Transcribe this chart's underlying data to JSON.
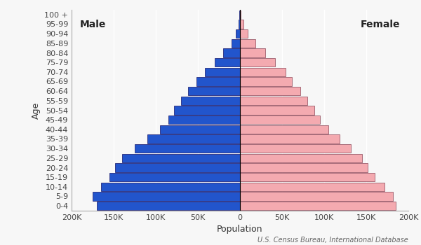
{
  "age_groups": [
    "0-4",
    "5-9",
    "10-14",
    "15-19",
    "20-24",
    "25-29",
    "30-34",
    "35-39",
    "40-44",
    "45-49",
    "50-54",
    "55-59",
    "60-64",
    "65-69",
    "70-74",
    "75-79",
    "80-84",
    "85-89",
    "90-94",
    "95-99",
    "100 +"
  ],
  "male": [
    170000,
    175000,
    165000,
    155000,
    148000,
    140000,
    125000,
    110000,
    95000,
    85000,
    78000,
    70000,
    62000,
    52000,
    42000,
    30000,
    20000,
    10000,
    5000,
    2000,
    500
  ],
  "female": [
    185000,
    182000,
    172000,
    160000,
    152000,
    145000,
    132000,
    118000,
    105000,
    95000,
    88000,
    80000,
    72000,
    62000,
    54000,
    42000,
    30000,
    18000,
    9000,
    4000,
    1000
  ],
  "male_color": "#2255cc",
  "female_color": "#f4aab0",
  "male_edge_color": "#111166",
  "female_edge_color": "#884455",
  "bar_height": 0.88,
  "xlim": 200000,
  "xticks": [
    -200000,
    -150000,
    -100000,
    -50000,
    0,
    50000,
    100000,
    150000,
    200000
  ],
  "xtick_labels": [
    "200K",
    "150K",
    "100K",
    "50K",
    "0",
    "50K",
    "100K",
    "150K",
    "200K"
  ],
  "xlabel": "Population",
  "ylabel": "Age",
  "male_label": "Male",
  "female_label": "Female",
  "source_text": "U.S. Census Bureau, International Database",
  "label_fontsize": 9,
  "tick_fontsize": 8,
  "male_female_fontsize": 10,
  "source_fontsize": 7,
  "background_color": "#f7f7f7",
  "line_color": "#000000",
  "grid_color": "#ffffff",
  "spine_color": "#aaaaaa"
}
